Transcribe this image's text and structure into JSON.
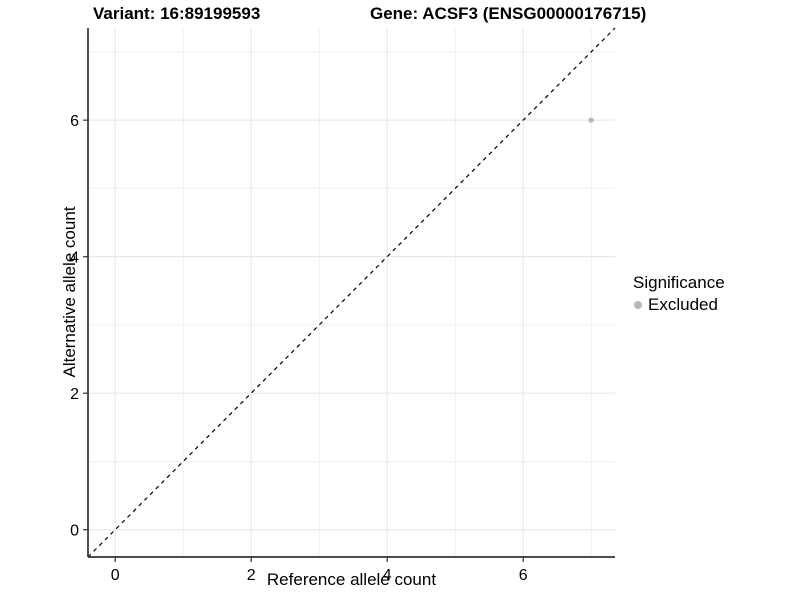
{
  "header": {
    "title_left": "Variant: 16:89199593",
    "title_right": "Gene: ACSF3 (ENSG00000176715)"
  },
  "legend": {
    "title": "Significance",
    "items": [
      {
        "label": "Excluded",
        "color": "#b8b8b8"
      }
    ]
  },
  "chart_data": {
    "type": "scatter",
    "title": "Variant: 16:89199593 | Gene: ACSF3 (ENSG00000176715)",
    "xlabel": "Reference allele count",
    "ylabel": "Alternative allele count",
    "xlim": [
      -0.4,
      7.35
    ],
    "ylim": [
      -0.4,
      7.35
    ],
    "x_ticks": [
      0,
      2,
      4,
      6
    ],
    "y_ticks": [
      0,
      2,
      4,
      6
    ],
    "x_minor_ticks": [
      1,
      3,
      5,
      7
    ],
    "y_minor_ticks": [
      1,
      3,
      5,
      7
    ],
    "grid": true,
    "legend_position": "right",
    "identity_line": {
      "style": "dashed",
      "color": "#000000"
    },
    "series": [
      {
        "name": "Excluded",
        "color": "#b8b8b8",
        "points": [
          {
            "x": 7,
            "y": 6
          }
        ]
      }
    ],
    "style": {
      "axis_color": "#333333",
      "grid_major_color": "#e4e4e4",
      "grid_minor_color": "#f0f0f0",
      "background": "#ffffff"
    }
  }
}
